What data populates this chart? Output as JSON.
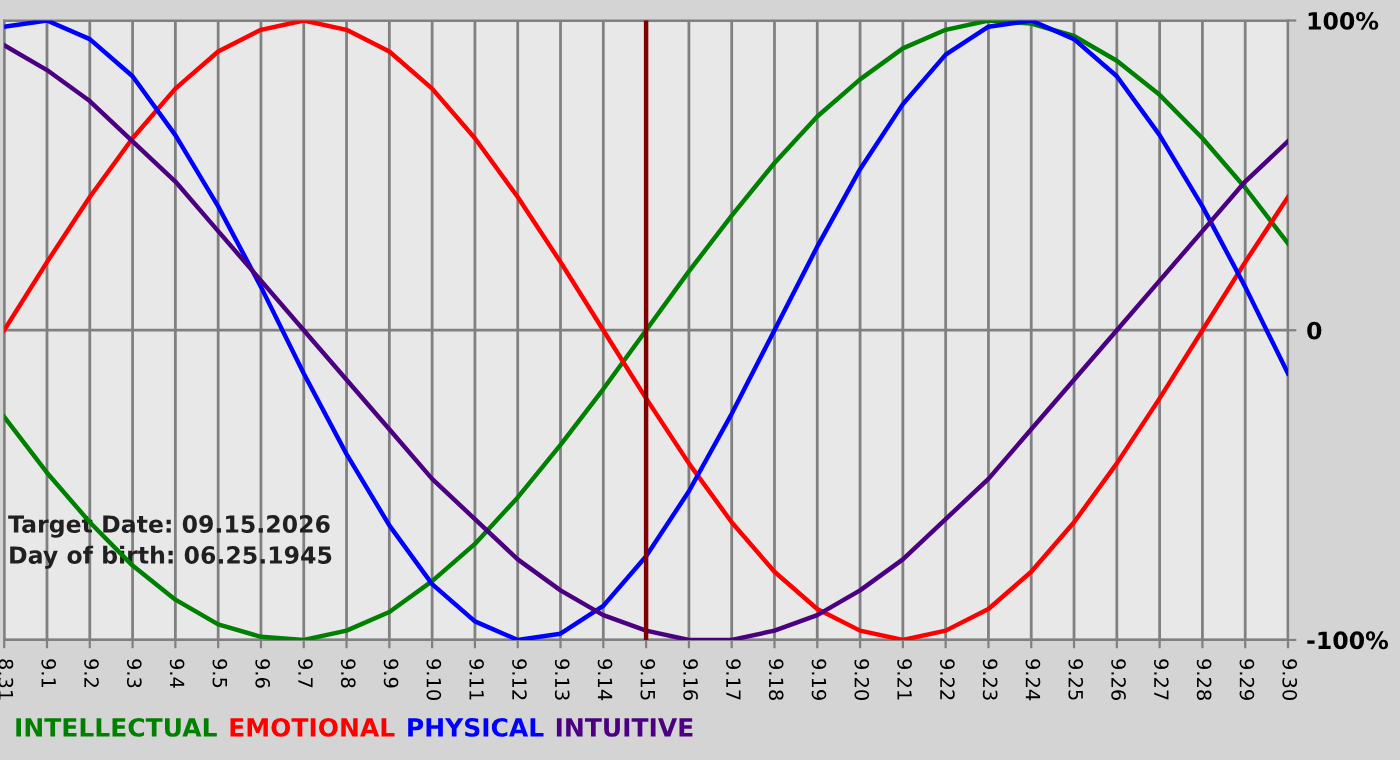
{
  "chart_data": {
    "type": "line",
    "categories": [
      "8.31",
      "9.1",
      "9.2",
      "9.3",
      "9.4",
      "9.5",
      "9.6",
      "9.7",
      "9.8",
      "9.9",
      "9.10",
      "9.11",
      "9.12",
      "9.13",
      "9.14",
      "9.15",
      "9.16",
      "9.17",
      "9.18",
      "9.19",
      "9.20",
      "9.21",
      "9.22",
      "9.23",
      "9.24",
      "9.25",
      "9.26",
      "9.27",
      "9.28",
      "9.29",
      "9.30"
    ],
    "series": [
      {
        "name": "INTELLECTUAL",
        "color": "#008000",
        "values": [
          -28,
          -46,
          -62,
          -76,
          -87,
          -95,
          -99,
          -100,
          -97,
          -91,
          -81,
          -69,
          -54,
          -37,
          -19,
          0,
          19,
          37,
          54,
          69,
          81,
          91,
          97,
          100,
          99,
          95,
          87,
          76,
          62,
          46,
          28
        ]
      },
      {
        "name": "EMOTIONAL",
        "color": "#ff0000",
        "values": [
          0,
          22,
          43,
          62,
          78,
          90,
          97,
          100,
          97,
          90,
          78,
          62,
          43,
          22,
          0,
          -22,
          -43,
          -62,
          -78,
          -90,
          -97,
          -100,
          -97,
          -90,
          -78,
          -62,
          -43,
          -22,
          0,
          22,
          43
        ]
      },
      {
        "name": "PHYSICAL",
        "color": "#0000ff",
        "values": [
          98,
          100,
          94,
          82,
          63,
          40,
          14,
          -14,
          -40,
          -63,
          -82,
          -94,
          -100,
          -98,
          -89,
          -73,
          -52,
          -27,
          0,
          27,
          52,
          73,
          89,
          98,
          100,
          94,
          82,
          63,
          40,
          14,
          -14
        ]
      },
      {
        "name": "INTUITIVE",
        "color": "#4b0082",
        "values": [
          92,
          84,
          74,
          61,
          48,
          32,
          16,
          0,
          -16,
          -32,
          -48,
          -61,
          -74,
          -84,
          -92,
          -97,
          -100,
          -100,
          -97,
          -92,
          -84,
          -74,
          -61,
          -48,
          -32,
          -16,
          0,
          16,
          32,
          48,
          61
        ]
      }
    ],
    "ylim": [
      -100,
      100
    ],
    "yticks": [
      {
        "value": 100,
        "label": "100%"
      },
      0,
      {
        "value": -100,
        "label": "-100%"
      }
    ],
    "grid": true,
    "legend": "bottom",
    "ref_lines": [
      {
        "axis": "x",
        "value": "9.15",
        "color": "#800000"
      }
    ],
    "annotations": [
      "Target Date: 09.15.2026",
      "Day of birth: 06.25.1945"
    ]
  }
}
